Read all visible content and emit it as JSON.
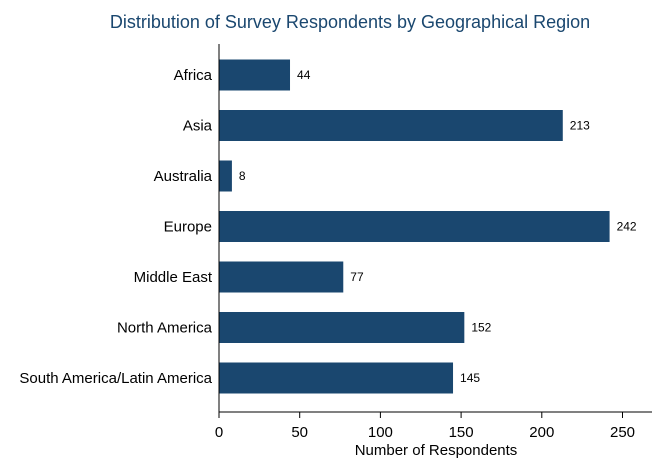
{
  "chart_data": {
    "type": "bar",
    "orientation": "horizontal",
    "title": "Distribution of Survey Respondents by Geographical Region",
    "xlabel": "Number of Respondents",
    "ylabel": "",
    "categories": [
      "Africa",
      "Asia",
      "Australia",
      "Europe",
      "Middle East",
      "North America",
      "South America/Latin America"
    ],
    "values": [
      44,
      213,
      8,
      242,
      77,
      152,
      145
    ],
    "xlim": [
      0,
      250
    ],
    "xticks": [
      0,
      50,
      100,
      150,
      200,
      250
    ],
    "grid": false,
    "legend": "none",
    "bar_color": "#1a476f",
    "title_color": "#1a476f"
  }
}
